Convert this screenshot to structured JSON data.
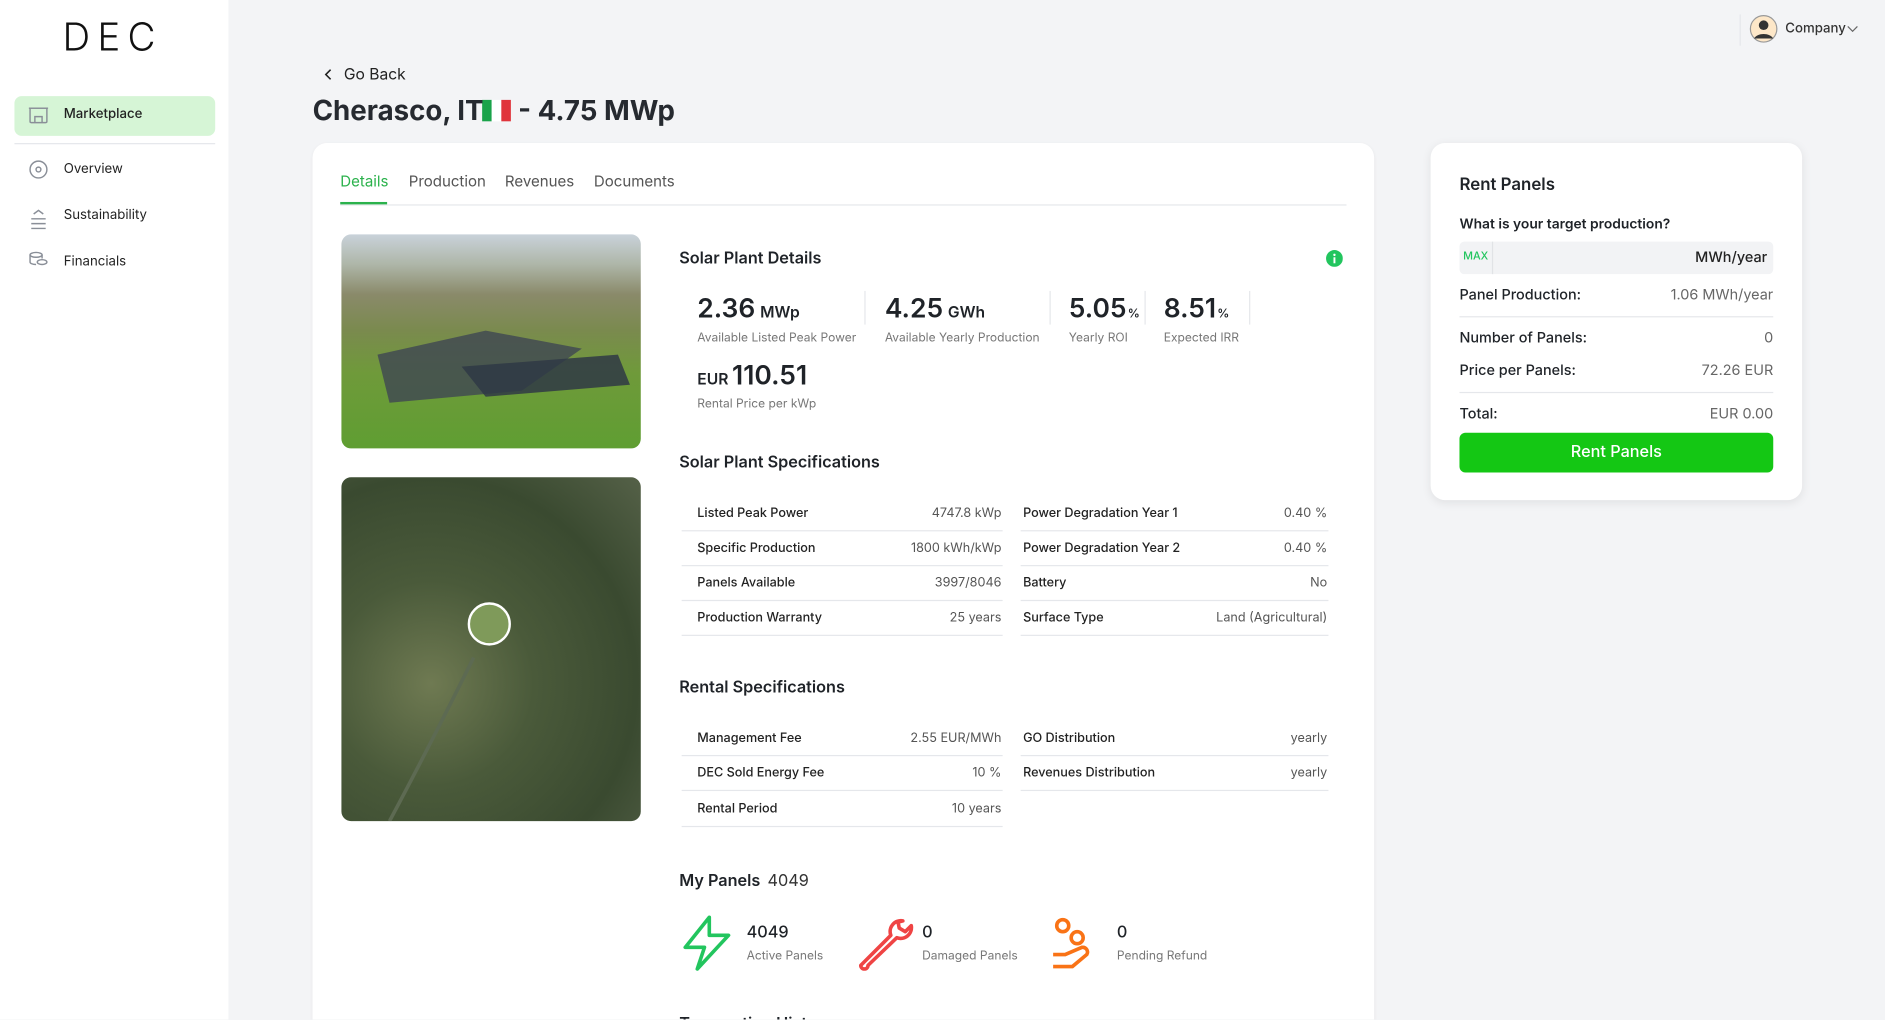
{
  "sidebar": {
    "logo": "DEC",
    "nav": [
      "Marketplace",
      "Overview",
      "Sustainability",
      "Financials"
    ]
  },
  "header": {
    "account": "Company",
    "back": "Go Back",
    "title": "Cherasco, IT",
    "title_suffix": "- 4.75 MWp"
  },
  "tabs": [
    "Details",
    "Production",
    "Revenues",
    "Documents"
  ],
  "plant_details": {
    "title": "Solar Plant Details",
    "metrics": [
      {
        "value": 2.36,
        "unit": "MWp",
        "label": "Available Listed Peak Power"
      },
      {
        "value": 4.25,
        "unit": "GWh",
        "label": "Available Yearly Production"
      },
      {
        "value": 5.05,
        "unit": "%",
        "label": "Yearly ROI"
      },
      {
        "value": 8.51,
        "unit": "%",
        "label": "Expected IRR"
      }
    ],
    "rental_price": {
      "currency": "EUR",
      "value": 110.51,
      "label": "Rental Price per kWp"
    }
  },
  "specifications": {
    "title": "Solar Plant Specifications",
    "left": [
      {
        "label": "Listed Peak Power",
        "value": "4747.8 kWp"
      },
      {
        "label": "Specific Production",
        "value": "1800 kWh/kWp"
      },
      {
        "label": "Panels Available",
        "value": "3997/8046"
      },
      {
        "label": "Production Warranty",
        "value": "25 years"
      }
    ],
    "right": [
      {
        "label": "Power Degradation Year 1",
        "value": "0.40 %"
      },
      {
        "label": "Power Degradation Year 2",
        "value": "0.40 %"
      },
      {
        "label": "Battery",
        "value": "No"
      },
      {
        "label": "Surface Type",
        "value": "Land (Agricultural)"
      }
    ]
  },
  "rental_specifications": {
    "title": "Rental Specifications",
    "left": [
      {
        "label": "Management Fee",
        "value": "2.55 EUR/MWh"
      },
      {
        "label": "DEC Sold Energy Fee",
        "value": "10 %"
      },
      {
        "label": "Rental Period",
        "value": "10 years"
      }
    ],
    "right": [
      {
        "label": "GO Distribution",
        "value": "yearly"
      },
      {
        "label": "Revenues Distribution",
        "value": "yearly"
      }
    ]
  },
  "my_panels": {
    "title": "My Panels",
    "count": 4049,
    "stats": [
      {
        "value": 4049,
        "label": "Active Panels"
      },
      {
        "value": 0,
        "label": "Damaged Panels"
      },
      {
        "value": 0,
        "label": "Pending Refund"
      }
    ]
  },
  "transactions": {
    "title": "Transaction History"
  },
  "rent": {
    "title": "Rent Panels",
    "question": "What is your target production?",
    "input_prefix": "MAX",
    "input_unit": "MWh/year",
    "rows": [
      {
        "label": "Panel Production:",
        "value": "1.06 MWh/year"
      },
      {
        "label": "Number of Panels:",
        "value": 0
      },
      {
        "label": "Price per Panels:",
        "value": "72.26 EUR"
      },
      {
        "label": "Total:",
        "value": "EUR 0.00"
      }
    ],
    "button": "Rent Panels"
  }
}
